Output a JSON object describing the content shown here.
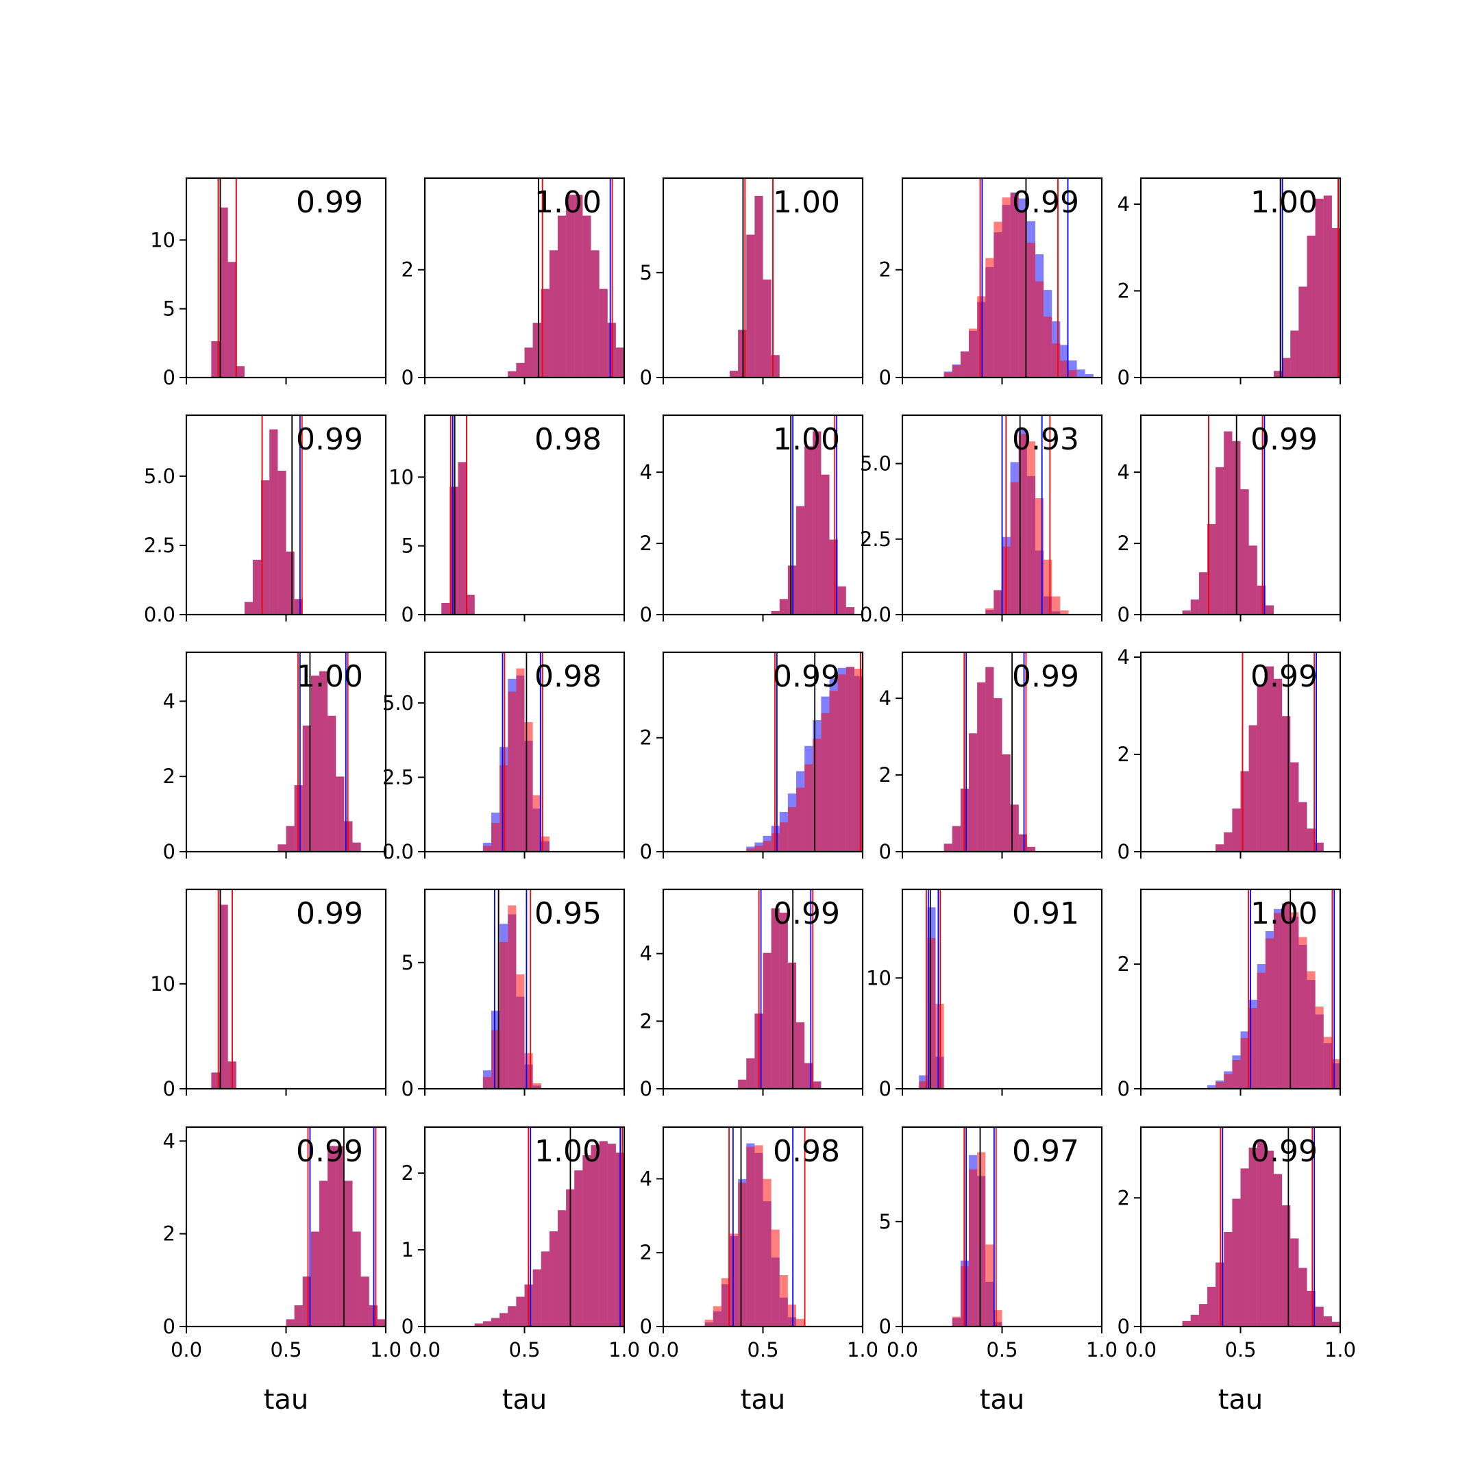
{
  "chart_data": {
    "type": "histogram-grid",
    "rows": 5,
    "cols": 5,
    "xlim": [
      0,
      1
    ],
    "xticks": [
      "0.0",
      "0.5",
      "1.0"
    ],
    "xlabel": "tau",
    "colors": {
      "a": "#0000ff",
      "b": "#ff0000",
      "center": "#000000",
      "overlap": "#c0306a"
    },
    "panels": [
      {
        "ann": "0.99",
        "ymax": 14.5,
        "yticks": [
          {
            "v": 0,
            "t": "0"
          },
          {
            "v": 5,
            "t": "5"
          },
          {
            "v": 10,
            "t": "10"
          }
        ],
        "a": {
          "mean": 0.2,
          "sd": 0.03
        },
        "b": {
          "mean": 0.2,
          "sd": 0.03
        },
        "lines": {
          "c": 0.17,
          "al": 0.16,
          "ah": 0.25,
          "bl": 0.16,
          "bh": 0.25
        }
      },
      {
        "ann": "1.00",
        "ymax": 3.7,
        "yticks": [
          {
            "v": 0,
            "t": "0"
          },
          {
            "v": 2,
            "t": "2"
          }
        ],
        "a": {
          "mean": 0.75,
          "sd": 0.12
        },
        "b": {
          "mean": 0.75,
          "sd": 0.12
        },
        "lines": {
          "c": 0.57,
          "al": 0.57,
          "ah": 0.93,
          "bl": 0.59,
          "bh": 0.94
        }
      },
      {
        "ann": "1.00",
        "ymax": 9.5,
        "yticks": [
          {
            "v": 0,
            "t": "0"
          },
          {
            "v": 5,
            "t": "5"
          }
        ],
        "a": {
          "mean": 0.47,
          "sd": 0.045
        },
        "b": {
          "mean": 0.47,
          "sd": 0.045
        },
        "lines": {
          "c": 0.4,
          "al": 0.4,
          "ah": 0.55,
          "bl": 0.41,
          "bh": 0.55
        }
      },
      {
        "ann": "0.99",
        "ymax": 3.7,
        "yticks": [
          {
            "v": 0,
            "t": "0"
          },
          {
            "v": 2,
            "t": "2"
          }
        ],
        "a": {
          "mean": 0.57,
          "sd": 0.13
        },
        "b": {
          "mean": 0.55,
          "sd": 0.12
        },
        "lines": {
          "c": 0.62,
          "al": 0.4,
          "ah": 0.83,
          "bl": 0.39,
          "bh": 0.78
        }
      },
      {
        "ann": "1.00",
        "ymax": 4.6,
        "yticks": [
          {
            "v": 0,
            "t": "0"
          },
          {
            "v": 2,
            "t": "2"
          },
          {
            "v": 4,
            "t": "4"
          }
        ],
        "a": {
          "mean": 0.92,
          "sd": 0.09
        },
        "b": {
          "mean": 0.92,
          "sd": 0.09
        },
        "lines": {
          "c": 0.7,
          "al": 0.71,
          "ah": 0.99,
          "bl": 0.7,
          "bh": 0.99
        }
      },
      {
        "ann": "0.99",
        "ymax": 7.2,
        "yticks": [
          {
            "v": 0,
            "t": "0.0"
          },
          {
            "v": 2.5,
            "t": "2.5"
          },
          {
            "v": 5,
            "t": "5.0"
          }
        ],
        "a": {
          "mean": 0.44,
          "sd": 0.055
        },
        "b": {
          "mean": 0.44,
          "sd": 0.055
        },
        "lines": {
          "c": 0.53,
          "al": 0.38,
          "ah": 0.57,
          "bl": 0.38,
          "bh": 0.58
        }
      },
      {
        "ann": "0.98",
        "ymax": 14.5,
        "yticks": [
          {
            "v": 0,
            "t": "0"
          },
          {
            "v": 5,
            "t": "5"
          },
          {
            "v": 10,
            "t": "10"
          }
        ],
        "a": {
          "mean": 0.17,
          "sd": 0.028
        },
        "b": {
          "mean": 0.17,
          "sd": 0.028
        },
        "lines": {
          "c": 0.15,
          "al": 0.14,
          "ah": 0.21,
          "bl": 0.13,
          "bh": 0.21
        }
      },
      {
        "ann": "1.00",
        "ymax": 5.6,
        "yticks": [
          {
            "v": 0,
            "t": "0"
          },
          {
            "v": 2,
            "t": "2"
          },
          {
            "v": 4,
            "t": "4"
          }
        ],
        "a": {
          "mean": 0.76,
          "sd": 0.07
        },
        "b": {
          "mean": 0.76,
          "sd": 0.07
        },
        "lines": {
          "c": 0.64,
          "al": 0.65,
          "ah": 0.87,
          "bl": 0.64,
          "bh": 0.86
        }
      },
      {
        "ann": "0.93",
        "ymax": 6.6,
        "yticks": [
          {
            "v": 0,
            "t": "0.0"
          },
          {
            "v": 2.5,
            "t": "2.5"
          },
          {
            "v": 5,
            "t": "5.0"
          }
        ],
        "a": {
          "mean": 0.6,
          "sd": 0.06
        },
        "b": {
          "mean": 0.62,
          "sd": 0.07
        },
        "lines": {
          "c": 0.59,
          "al": 0.5,
          "ah": 0.7,
          "bl": 0.52,
          "bh": 0.74
        }
      },
      {
        "ann": "0.99",
        "ymax": 5.6,
        "yticks": [
          {
            "v": 0,
            "t": "0"
          },
          {
            "v": 2,
            "t": "2"
          },
          {
            "v": 4,
            "t": "4"
          }
        ],
        "a": {
          "mean": 0.45,
          "sd": 0.08
        },
        "b": {
          "mean": 0.45,
          "sd": 0.08
        },
        "lines": {
          "c": 0.48,
          "al": 0.34,
          "ah": 0.62,
          "bl": 0.34,
          "bh": 0.61
        }
      },
      {
        "ann": "1.00",
        "ymax": 5.3,
        "yticks": [
          {
            "v": 0,
            "t": "0"
          },
          {
            "v": 2,
            "t": "2"
          },
          {
            "v": 4,
            "t": "4"
          }
        ],
        "a": {
          "mean": 0.67,
          "sd": 0.075
        },
        "b": {
          "mean": 0.67,
          "sd": 0.075
        },
        "lines": {
          "c": 0.62,
          "al": 0.57,
          "ah": 0.8,
          "bl": 0.56,
          "bh": 0.81
        }
      },
      {
        "ann": "0.98",
        "ymax": 6.7,
        "yticks": [
          {
            "v": 0,
            "t": "0.0"
          },
          {
            "v": 2.5,
            "t": "2.5"
          },
          {
            "v": 5,
            "t": "5.0"
          }
        ],
        "a": {
          "mean": 0.46,
          "sd": 0.06
        },
        "b": {
          "mean": 0.47,
          "sd": 0.06
        },
        "lines": {
          "c": 0.51,
          "al": 0.39,
          "ah": 0.58,
          "bl": 0.4,
          "bh": 0.59
        }
      },
      {
        "ann": "0.99",
        "ymax": 3.5,
        "yticks": [
          {
            "v": 0,
            "t": "0"
          },
          {
            "v": 2,
            "t": "2"
          }
        ],
        "a": {
          "mean": 0.92,
          "sd": 0.18
        },
        "b": {
          "mean": 0.95,
          "sd": 0.18
        },
        "lines": {
          "c": 0.76,
          "al": 0.57,
          "ah": 0.99,
          "bl": 0.56,
          "bh": 0.99
        }
      },
      {
        "ann": "0.99",
        "ymax": 5.2,
        "yticks": [
          {
            "v": 0,
            "t": "0"
          },
          {
            "v": 2,
            "t": "2"
          },
          {
            "v": 4,
            "t": "4"
          }
        ],
        "a": {
          "mean": 0.43,
          "sd": 0.08
        },
        "b": {
          "mean": 0.43,
          "sd": 0.08
        },
        "lines": {
          "c": 0.55,
          "al": 0.32,
          "ah": 0.61,
          "bl": 0.31,
          "bh": 0.62
        }
      },
      {
        "ann": "0.99",
        "ymax": 4.1,
        "yticks": [
          {
            "v": 0,
            "t": "0"
          },
          {
            "v": 2,
            "t": "2"
          },
          {
            "v": 4,
            "t": "4"
          }
        ],
        "a": {
          "mean": 0.65,
          "sd": 0.1
        },
        "b": {
          "mean": 0.65,
          "sd": 0.1
        },
        "lines": {
          "c": 0.74,
          "al": 0.51,
          "ah": 0.88,
          "bl": 0.51,
          "bh": 0.87
        }
      },
      {
        "ann": "0.99",
        "ymax": 19,
        "yticks": [
          {
            "v": 0,
            "t": "0"
          },
          {
            "v": 10,
            "t": "10"
          }
        ],
        "a": {
          "mean": 0.19,
          "sd": 0.02
        },
        "b": {
          "mean": 0.19,
          "sd": 0.02
        },
        "lines": {
          "c": 0.17,
          "al": 0.17,
          "ah": 0.23,
          "bl": 0.16,
          "bh": 0.23
        }
      },
      {
        "ann": "0.95",
        "ymax": 7.9,
        "yticks": [
          {
            "v": 0,
            "t": "0"
          },
          {
            "v": 5,
            "t": "5"
          }
        ],
        "a": {
          "mean": 0.42,
          "sd": 0.05
        },
        "b": {
          "mean": 0.43,
          "sd": 0.05
        },
        "lines": {
          "c": 0.37,
          "al": 0.35,
          "ah": 0.51,
          "bl": 0.37,
          "bh": 0.53
        }
      },
      {
        "ann": "0.99",
        "ymax": 5.9,
        "yticks": [
          {
            "v": 0,
            "t": "0"
          },
          {
            "v": 2,
            "t": "2"
          },
          {
            "v": 4,
            "t": "4"
          }
        ],
        "a": {
          "mean": 0.58,
          "sd": 0.075
        },
        "b": {
          "mean": 0.58,
          "sd": 0.075
        },
        "lines": {
          "c": 0.65,
          "al": 0.49,
          "ah": 0.74,
          "bl": 0.48,
          "bh": 0.75
        }
      },
      {
        "ann": "0.91",
        "ymax": 18,
        "yticks": [
          {
            "v": 0,
            "t": "0"
          },
          {
            "v": 10,
            "t": "10"
          }
        ],
        "a": {
          "mean": 0.15,
          "sd": 0.02
        },
        "b": {
          "mean": 0.16,
          "sd": 0.022
        },
        "lines": {
          "c": 0.14,
          "al": 0.13,
          "ah": 0.18,
          "bl": 0.12,
          "bh": 0.19
        }
      },
      {
        "ann": "1.00",
        "ymax": 3.2,
        "yticks": [
          {
            "v": 0,
            "t": "0"
          },
          {
            "v": 2,
            "t": "2"
          }
        ],
        "a": {
          "mean": 0.72,
          "sd": 0.13
        },
        "b": {
          "mean": 0.73,
          "sd": 0.13
        },
        "lines": {
          "c": 0.75,
          "al": 0.55,
          "ah": 0.97,
          "bl": 0.54,
          "bh": 0.96
        }
      },
      {
        "ann": "0.99",
        "ymax": 4.3,
        "yticks": [
          {
            "v": 0,
            "t": "0"
          },
          {
            "v": 2,
            "t": "2"
          },
          {
            "v": 4,
            "t": "4"
          }
        ],
        "a": {
          "mean": 0.75,
          "sd": 0.09
        },
        "b": {
          "mean": 0.75,
          "sd": 0.09
        },
        "lines": {
          "c": 0.79,
          "al": 0.62,
          "ah": 0.94,
          "bl": 0.61,
          "bh": 0.95
        }
      },
      {
        "ann": "1.00",
        "ymax": 2.6,
        "yticks": [
          {
            "v": 0,
            "t": "0"
          },
          {
            "v": 1,
            "t": "1"
          },
          {
            "v": 2,
            "t": "2"
          }
        ],
        "a": {
          "mean": 0.9,
          "sd": 0.22
        },
        "b": {
          "mean": 0.9,
          "sd": 0.22
        },
        "lines": {
          "c": 0.73,
          "al": 0.53,
          "ah": 0.98,
          "bl": 0.52,
          "bh": 0.99
        }
      },
      {
        "ann": "0.98",
        "ymax": 5.4,
        "yticks": [
          {
            "v": 0,
            "t": "0"
          },
          {
            "v": 2,
            "t": "2"
          },
          {
            "v": 4,
            "t": "4"
          }
        ],
        "a": {
          "mean": 0.45,
          "sd": 0.08
        },
        "b": {
          "mean": 0.46,
          "sd": 0.09
        },
        "lines": {
          "c": 0.39,
          "al": 0.35,
          "ah": 0.65,
          "bl": 0.33,
          "bh": 0.71
        }
      },
      {
        "ann": "0.97",
        "ymax": 9.5,
        "yticks": [
          {
            "v": 0,
            "t": "0"
          },
          {
            "v": 5,
            "t": "5"
          }
        ],
        "a": {
          "mean": 0.37,
          "sd": 0.04
        },
        "b": {
          "mean": 0.38,
          "sd": 0.045
        },
        "lines": {
          "c": 0.39,
          "al": 0.32,
          "ah": 0.46,
          "bl": 0.31,
          "bh": 0.47
        }
      },
      {
        "ann": "0.99",
        "ymax": 3.1,
        "yticks": [
          {
            "v": 0,
            "t": "0"
          },
          {
            "v": 2,
            "t": "2"
          }
        ],
        "a": {
          "mean": 0.6,
          "sd": 0.14
        },
        "b": {
          "mean": 0.6,
          "sd": 0.14
        },
        "lines": {
          "c": 0.74,
          "al": 0.41,
          "ah": 0.87,
          "bl": 0.4,
          "bh": 0.86
        }
      }
    ]
  }
}
